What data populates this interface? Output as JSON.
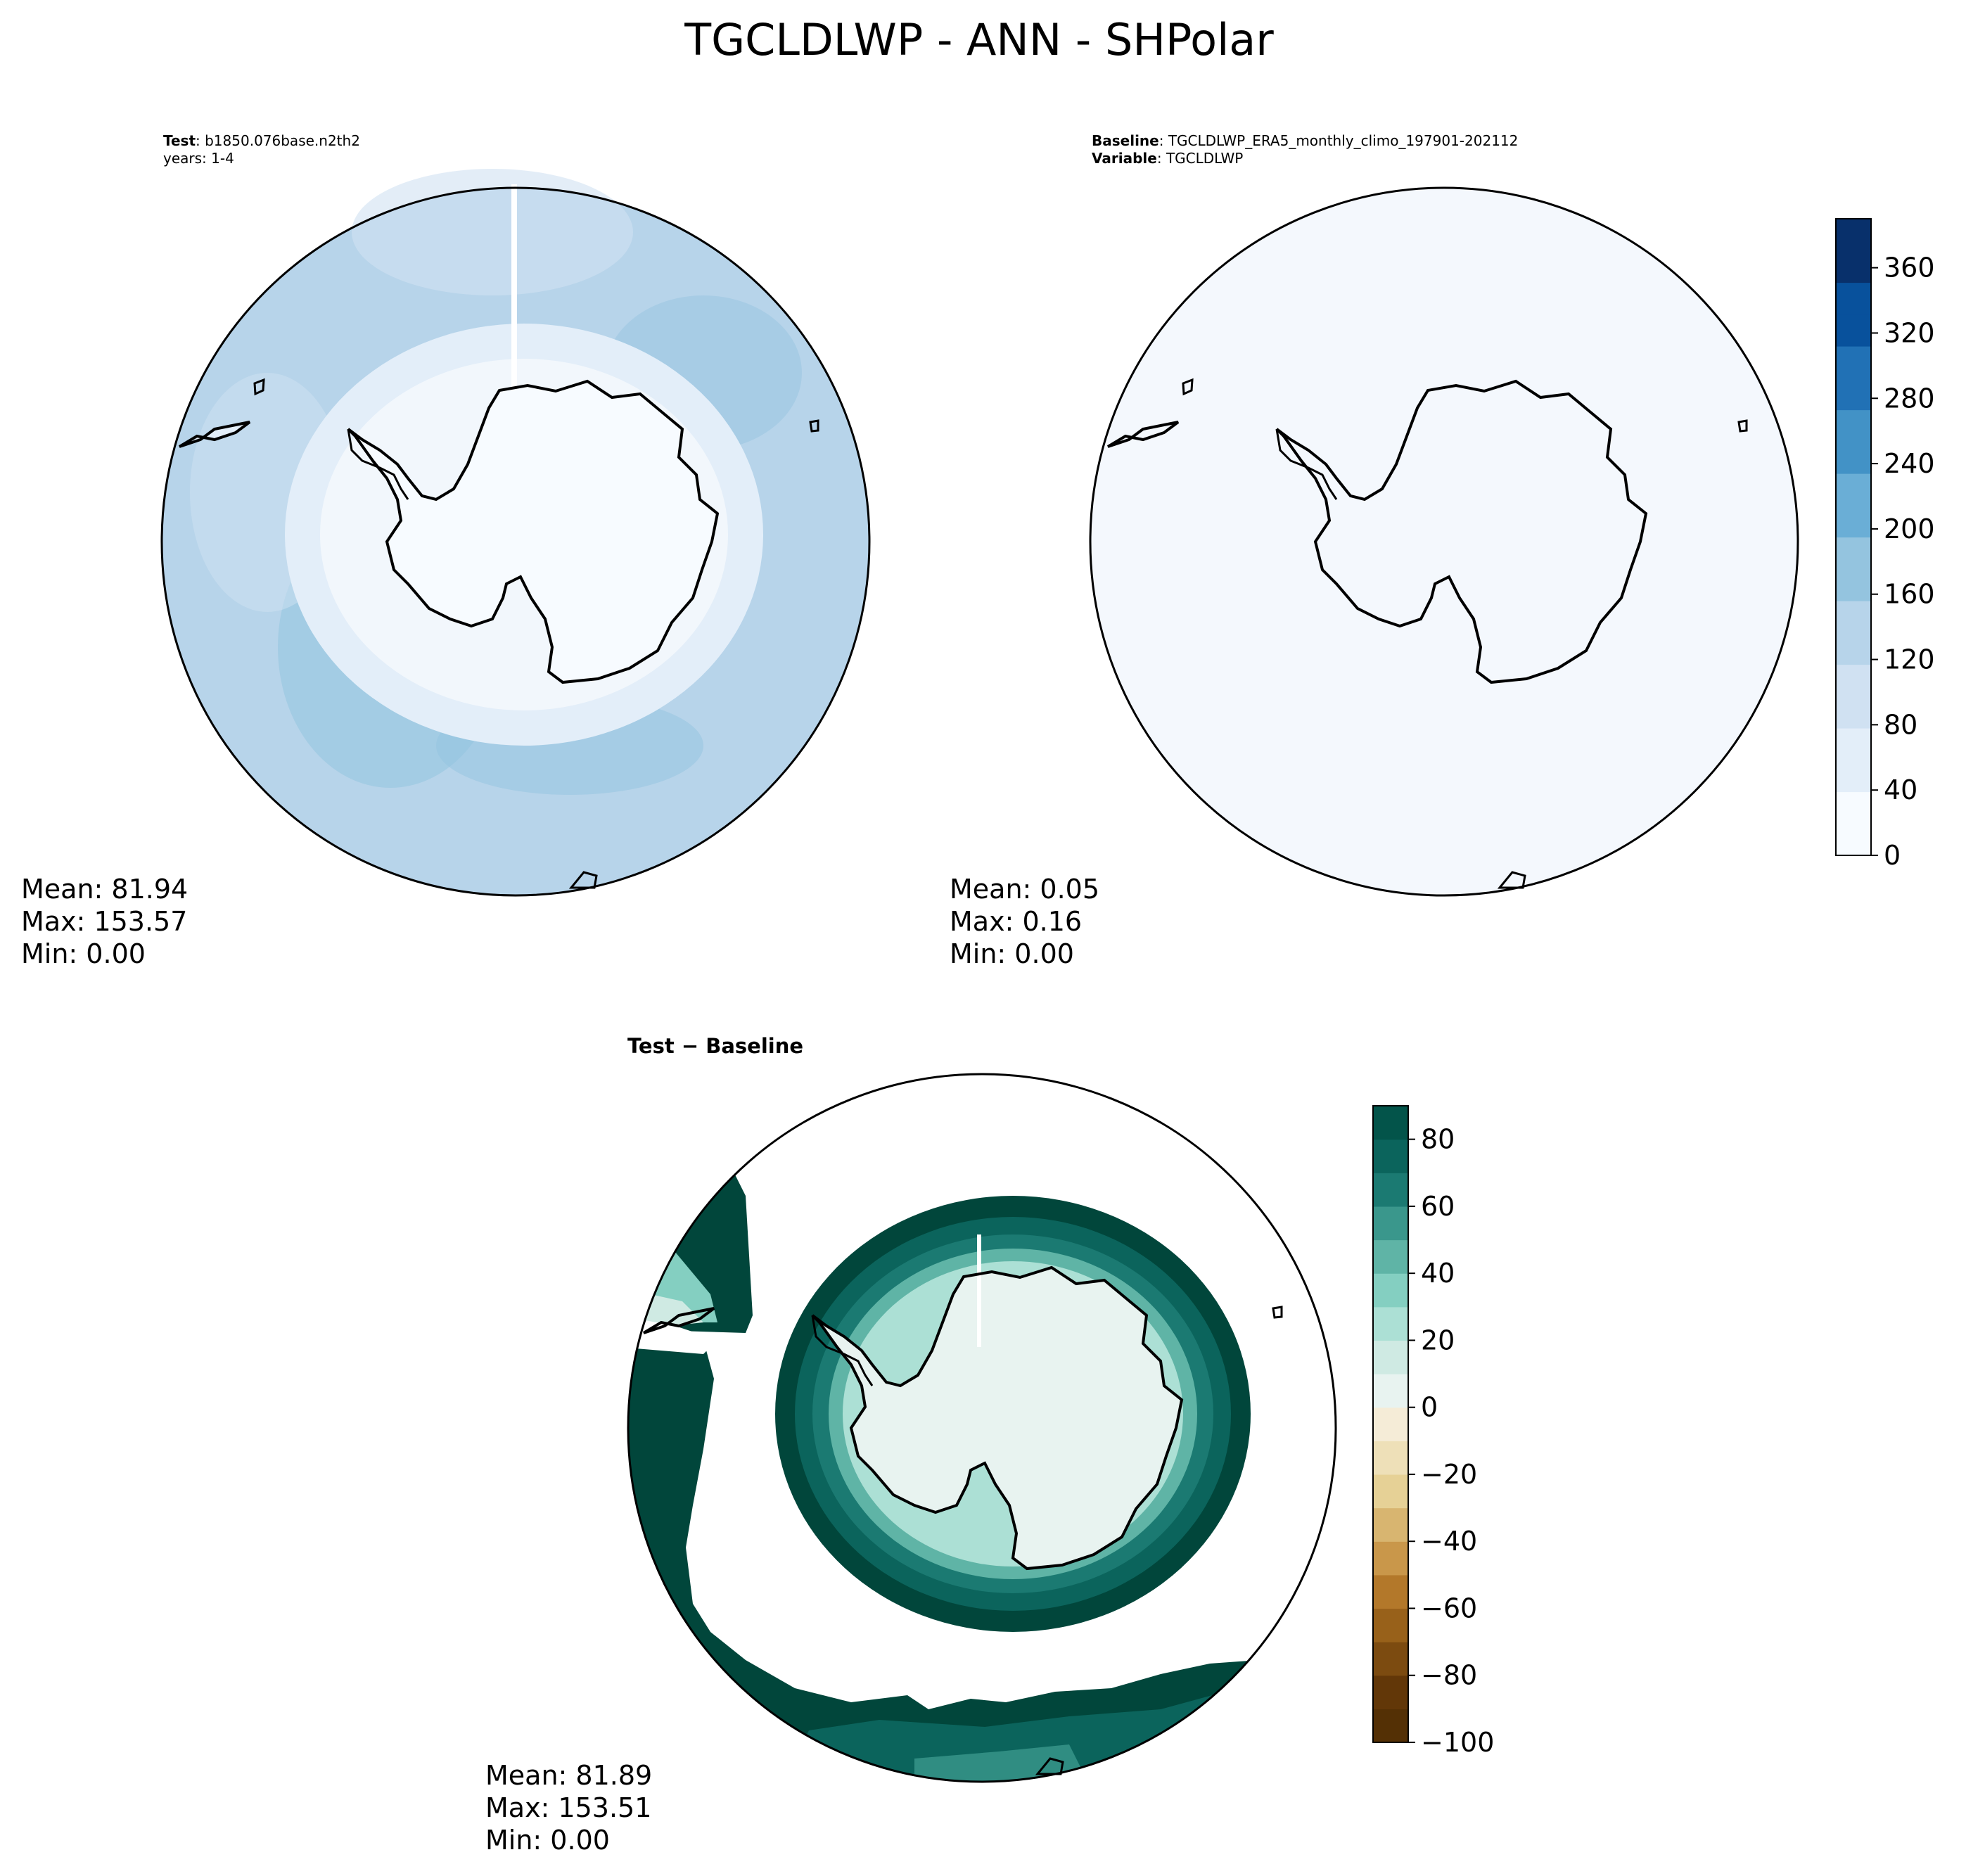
{
  "figure": {
    "title": "TGCLDLWP - ANN - SHPolar"
  },
  "colors": {
    "blues": [
      "#f7fbff",
      "#e3eef9",
      "#d0e1f2",
      "#b7d4ea",
      "#94c4df",
      "#6aaed6",
      "#4292c6",
      "#2171b5",
      "#08519c",
      "#08306b"
    ],
    "brbg_neg": [
      "#f5ecd7",
      "#eee0b8",
      "#e6d196",
      "#d8b570",
      "#c9974a",
      "#b3782a",
      "#98611a",
      "#7c4b10",
      "#623708",
      "#543005"
    ],
    "brbg_pos": [
      "#e8f3f0",
      "#cfeae3",
      "#ace0d5",
      "#84cfc1",
      "#5fb4a6",
      "#3a978c",
      "#1b7a72",
      "#0b645c",
      "#03544a",
      "#01463b"
    ],
    "land_outline": "#000000"
  },
  "chart_data": [
    {
      "type": "heatmap",
      "panel": "test",
      "header_lines": [
        {
          "bold": "Test",
          "rest": ": b1850.076base.n2th2"
        },
        {
          "bold": "",
          "rest": "years: 1-4"
        }
      ],
      "projection": "south polar stereographic",
      "stats": {
        "mean": "Mean: 81.94",
        "max": "Max: 153.57",
        "min": "Min:  0.00"
      },
      "field": {
        "ice_sheet": 0,
        "coastal_ring": 60,
        "ocean": 115,
        "max": 153.57
      }
    },
    {
      "type": "heatmap",
      "panel": "baseline",
      "header_lines": [
        {
          "bold": "Baseline",
          "rest": ": TGCLDLWP_ERA5_monthly_climo_197901-202112"
        },
        {
          "bold": "Variable",
          "rest": ": TGCLDLWP"
        }
      ],
      "projection": "south polar stereographic",
      "stats": {
        "mean": "Mean:  0.05",
        "max": "Max:  0.16",
        "min": "Min:  0.00"
      },
      "field": {
        "everywhere": 0.05
      },
      "colorbar": {
        "min": 0,
        "max": 390,
        "ticks": [
          0,
          40,
          80,
          120,
          160,
          200,
          240,
          280,
          320,
          360
        ]
      }
    },
    {
      "type": "heatmap",
      "panel": "difference",
      "header_lines": [
        {
          "bold": "Test − Baseline",
          "rest": ""
        }
      ],
      "projection": "south polar stereographic",
      "stats": {
        "mean": "Mean: 81.89",
        "max": "Max: 153.51",
        "min": "Min:  0.00"
      },
      "field": {
        "ice_sheet": 5,
        "coastal_ring": 60,
        "ocean_masked": "above colorbar maximum"
      },
      "colorbar": {
        "min": -100,
        "max": 90,
        "ticks": [
          -100,
          -80,
          -60,
          -40,
          -20,
          0,
          20,
          40,
          60,
          80
        ]
      }
    }
  ]
}
